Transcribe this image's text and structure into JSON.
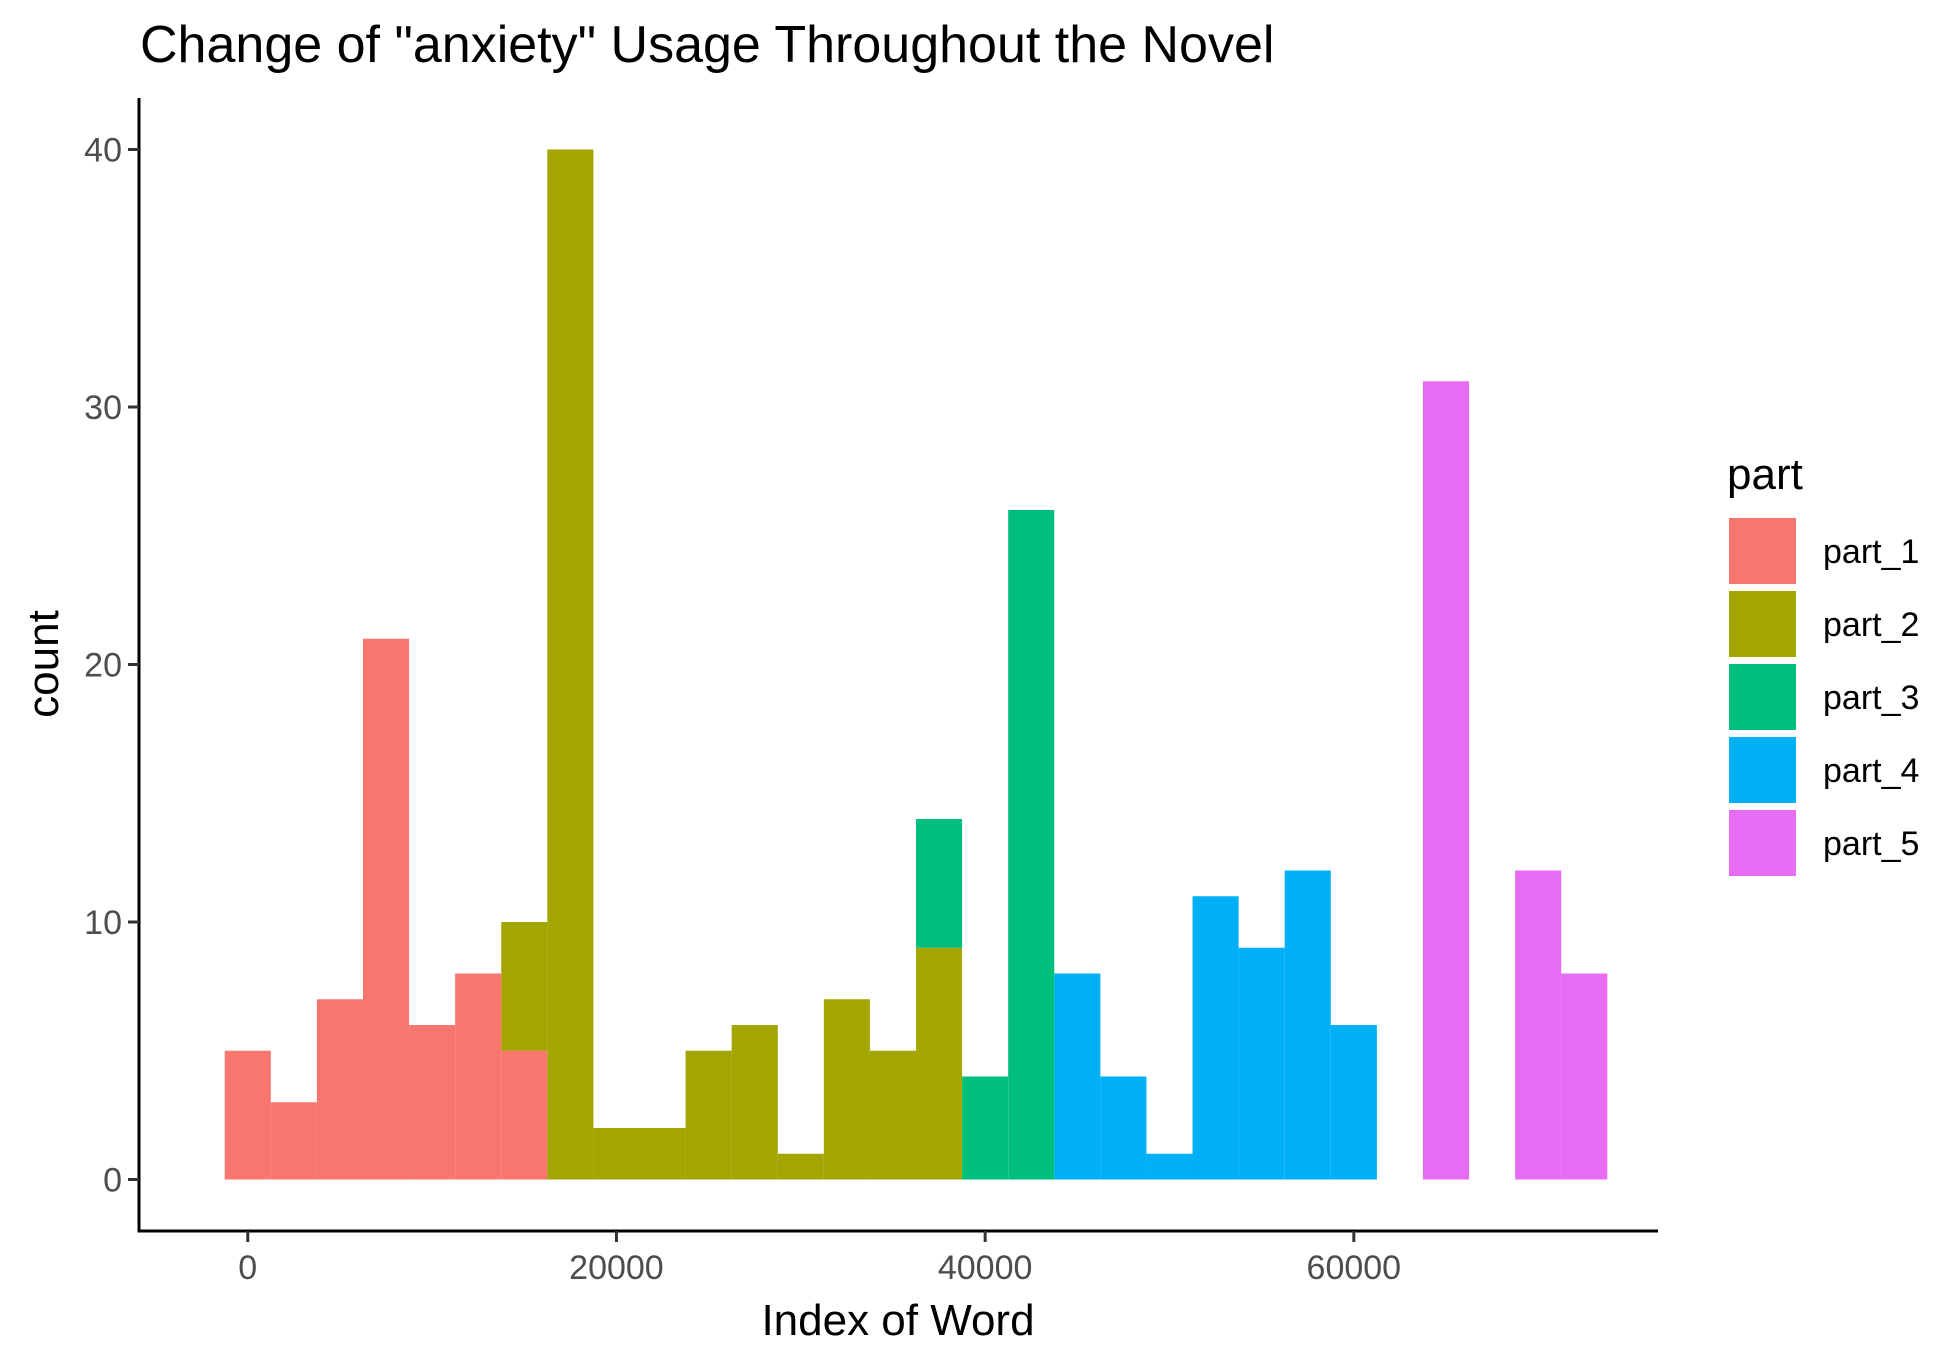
{
  "chart_data": {
    "type": "bar",
    "title": "Change of \"anxiety\" Usage Throughout the Novel",
    "xlabel": "Index of Word",
    "ylabel": "count",
    "xlim": [
      -5900,
      76500
    ],
    "ylim": [
      -2,
      42
    ],
    "x_ticks": [
      0,
      20000,
      40000,
      60000
    ],
    "y_ticks": [
      0,
      10,
      20,
      30,
      40
    ],
    "grid": false,
    "legend": {
      "title": "part",
      "position": "right"
    },
    "bin_width": 2500,
    "series": [
      {
        "name": "part_1",
        "color": "#F8766D",
        "bins": [
          {
            "x0": -1250,
            "count": 5
          },
          {
            "x0": 1250,
            "count": 3
          },
          {
            "x0": 3750,
            "count": 7
          },
          {
            "x0": 6250,
            "count": 21
          },
          {
            "x0": 8750,
            "count": 6
          },
          {
            "x0": 11250,
            "count": 8
          },
          {
            "x0": 13750,
            "count": 5
          }
        ]
      },
      {
        "name": "part_2",
        "color": "#A3A500",
        "bins": [
          {
            "x0": 13750,
            "count": 5
          },
          {
            "x0": 16250,
            "count": 40
          },
          {
            "x0": 18750,
            "count": 2
          },
          {
            "x0": 21250,
            "count": 2
          },
          {
            "x0": 23750,
            "count": 5
          },
          {
            "x0": 26250,
            "count": 6
          },
          {
            "x0": 28750,
            "count": 1
          },
          {
            "x0": 31250,
            "count": 7
          },
          {
            "x0": 33750,
            "count": 5
          },
          {
            "x0": 36250,
            "count": 9
          }
        ]
      },
      {
        "name": "part_3",
        "color": "#00BF7D",
        "bins": [
          {
            "x0": 36250,
            "count": 5
          },
          {
            "x0": 38750,
            "count": 4
          },
          {
            "x0": 41250,
            "count": 26
          }
        ]
      },
      {
        "name": "part_4",
        "color": "#00B0F6",
        "bins": [
          {
            "x0": 43750,
            "count": 8
          },
          {
            "x0": 46250,
            "count": 4
          },
          {
            "x0": 48750,
            "count": 1
          },
          {
            "x0": 51250,
            "count": 11
          },
          {
            "x0": 53750,
            "count": 9
          },
          {
            "x0": 56250,
            "count": 12
          },
          {
            "x0": 58750,
            "count": 6
          }
        ]
      },
      {
        "name": "part_5",
        "color": "#E76BF3",
        "bins": [
          {
            "x0": 63750,
            "count": 31
          },
          {
            "x0": 68750,
            "count": 12
          },
          {
            "x0": 71250,
            "count": 8
          }
        ]
      }
    ]
  }
}
